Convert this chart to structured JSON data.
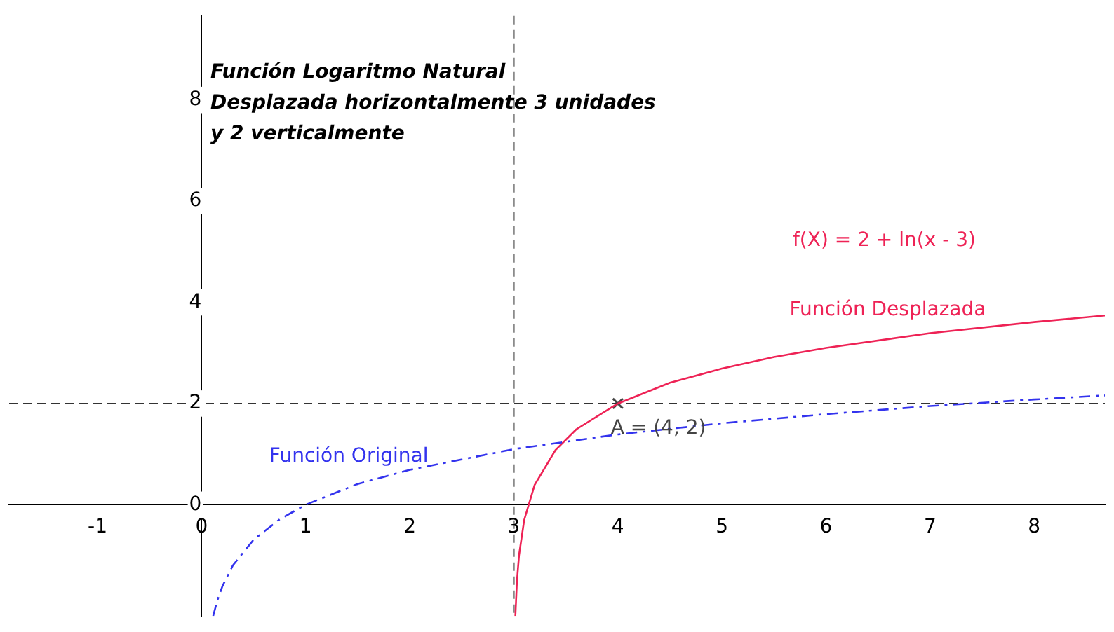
{
  "chart_data": {
    "type": "line",
    "xlim": [
      -1.85,
      8.68
    ],
    "ylim": [
      -2.2,
      9.66
    ],
    "xticks": [
      -1,
      0,
      1,
      2,
      3,
      4,
      5,
      6,
      7,
      8
    ],
    "yticks": [
      0,
      2,
      4,
      6,
      8
    ],
    "grid": false,
    "legend": false,
    "series": [
      {
        "name": "Función Original",
        "color": "#3333ee",
        "line_style": "dashed",
        "marker": "none",
        "x": [
          0.111,
          0.15,
          0.2,
          0.3,
          0.5,
          0.75,
          1,
          1.5,
          2,
          3,
          4,
          5,
          6,
          7,
          8,
          8.68
        ],
        "values": [
          -2.2,
          -1.9,
          -1.61,
          -1.2,
          -0.69,
          -0.29,
          0,
          0.41,
          0.69,
          1.1,
          1.39,
          1.61,
          1.79,
          1.95,
          2.08,
          2.16
        ]
      },
      {
        "name": "Función Desplazada",
        "color": "#ee2255",
        "line_style": "solid",
        "marker": "none",
        "x": [
          3.015,
          3.03,
          3.05,
          3.1,
          3.2,
          3.4,
          3.6,
          4,
          4.5,
          5,
          5.5,
          6,
          7,
          8,
          8.68
        ],
        "values": [
          -2.2,
          -1.51,
          -1,
          -0.3,
          0.39,
          1.08,
          1.49,
          2,
          2.41,
          2.69,
          2.92,
          3.1,
          3.39,
          3.61,
          3.74
        ]
      },
      {
        "type": "scatter",
        "color": "#444444",
        "marker": "cross",
        "x": [
          4
        ],
        "values": [
          2
        ]
      }
    ],
    "ref_lines": [
      {
        "axis": "x",
        "value": 3,
        "color": "#333333",
        "line_style": "dashed"
      },
      {
        "axis": "y",
        "value": 2,
        "color": "#333333",
        "line_style": "dashed"
      }
    ],
    "annotations": [
      "Función Logaritmo Natural",
      "Desplazada horizontalmente 3 unidades",
      "y 2 verticalmente",
      "f(X) = 2 + ln(x - 3)",
      {
        "text": "A = (4, 2)",
        "x": 4,
        "y": 2
      }
    ]
  }
}
